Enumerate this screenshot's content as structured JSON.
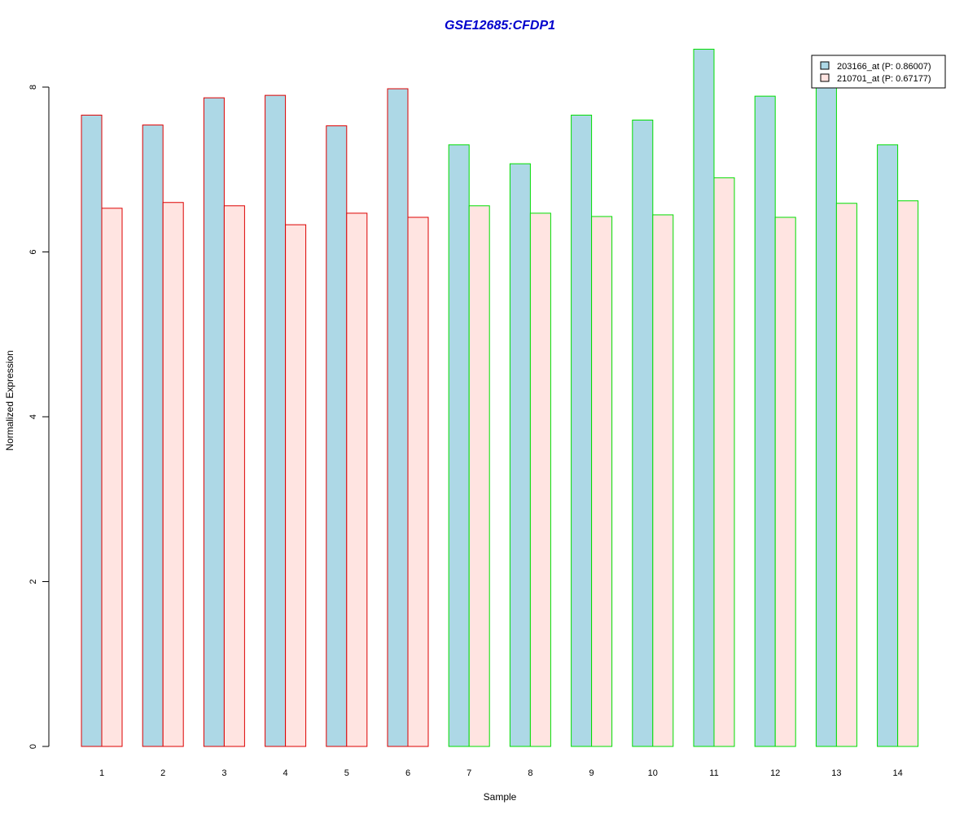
{
  "chart_data": {
    "type": "bar",
    "title": "GSE12685:CFDP1",
    "xlabel": "Sample",
    "ylabel": "Normalized Expression",
    "categories": [
      "1",
      "2",
      "3",
      "4",
      "5",
      "6",
      "7",
      "8",
      "9",
      "10",
      "11",
      "12",
      "13",
      "14"
    ],
    "series": [
      {
        "name": "203166_at (P: 0.86007)",
        "values": [
          7.66,
          7.54,
          7.87,
          7.9,
          7.53,
          7.98,
          7.3,
          7.07,
          7.66,
          7.6,
          8.46,
          7.89,
          8.02,
          7.3
        ]
      },
      {
        "name": "210701_at (P: 0.67177)",
        "values": [
          6.53,
          6.6,
          6.56,
          6.33,
          6.47,
          6.42,
          6.56,
          6.47,
          6.43,
          6.45,
          6.9,
          6.42,
          6.59,
          6.62
        ]
      }
    ],
    "group_border_colors": [
      "#dd0000",
      "#dd0000",
      "#dd0000",
      "#dd0000",
      "#dd0000",
      "#dd0000",
      "#00dd00",
      "#00dd00",
      "#00dd00",
      "#00dd00",
      "#00dd00",
      "#00dd00",
      "#00dd00",
      "#00dd00"
    ],
    "series_fill_colors": [
      "#add8e6",
      "#ffe4e1"
    ],
    "title_color": "#0000cc",
    "ylim": [
      0,
      8.5
    ],
    "yticks": [
      0,
      2,
      4,
      6,
      8
    ],
    "grid": false,
    "legend_position": "top-right"
  }
}
